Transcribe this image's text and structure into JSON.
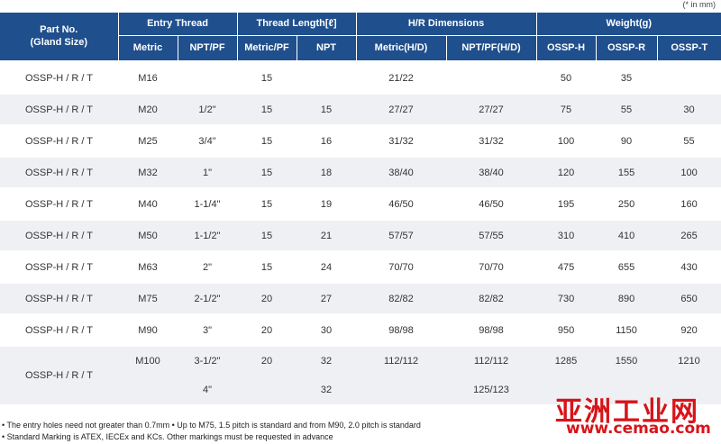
{
  "unit_note": "(* in mm)",
  "header": {
    "part_no": "Part No.",
    "gland_size": "(Gland Size)",
    "groups": {
      "entry_thread": "Entry Thread",
      "thread_length": "Thread Length[ℓ]",
      "hr_dimensions": "H/R Dimensions",
      "weight": "Weight(g)"
    },
    "sub": {
      "metric": "Metric",
      "npt_pf": "NPT/PF",
      "metric_pf": "Metric/PF",
      "npt": "NPT",
      "metric_hd": "Metric(H/D)",
      "npt_pf_hd": "NPT/PF(H/D)",
      "ossp_h": "OSSP-H",
      "ossp_r": "OSSP-R",
      "ossp_t": "OSSP-T"
    }
  },
  "rows": [
    {
      "part": "OSSP-H / R / T",
      "metric": "M16",
      "npt_pf": "",
      "tl_metric": "15",
      "tl_npt": "",
      "hr_metric": "21/22",
      "hr_npt": "",
      "w_h": "50",
      "w_r": "35",
      "w_t": ""
    },
    {
      "part": "OSSP-H / R / T",
      "metric": "M20",
      "npt_pf": "1/2\"",
      "tl_metric": "15",
      "tl_npt": "15",
      "hr_metric": "27/27",
      "hr_npt": "27/27",
      "w_h": "75",
      "w_r": "55",
      "w_t": "30"
    },
    {
      "part": "OSSP-H / R / T",
      "metric": "M25",
      "npt_pf": "3/4\"",
      "tl_metric": "15",
      "tl_npt": "16",
      "hr_metric": "31/32",
      "hr_npt": "31/32",
      "w_h": "100",
      "w_r": "90",
      "w_t": "55"
    },
    {
      "part": "OSSP-H / R / T",
      "metric": "M32",
      "npt_pf": "1\"",
      "tl_metric": "15",
      "tl_npt": "18",
      "hr_metric": "38/40",
      "hr_npt": "38/40",
      "w_h": "120",
      "w_r": "155",
      "w_t": "100"
    },
    {
      "part": "OSSP-H / R / T",
      "metric": "M40",
      "npt_pf": "1-1/4\"",
      "tl_metric": "15",
      "tl_npt": "19",
      "hr_metric": "46/50",
      "hr_npt": "46/50",
      "w_h": "195",
      "w_r": "250",
      "w_t": "160"
    },
    {
      "part": "OSSP-H / R / T",
      "metric": "M50",
      "npt_pf": "1-1/2\"",
      "tl_metric": "15",
      "tl_npt": "21",
      "hr_metric": "57/57",
      "hr_npt": "57/55",
      "w_h": "310",
      "w_r": "410",
      "w_t": "265"
    },
    {
      "part": "OSSP-H / R / T",
      "metric": "M63",
      "npt_pf": "2\"",
      "tl_metric": "15",
      "tl_npt": "24",
      "hr_metric": "70/70",
      "hr_npt": "70/70",
      "w_h": "475",
      "w_r": "655",
      "w_t": "430"
    },
    {
      "part": "OSSP-H / R / T",
      "metric": "M75",
      "npt_pf": "2-1/2\"",
      "tl_metric": "20",
      "tl_npt": "27",
      "hr_metric": "82/82",
      "hr_npt": "82/82",
      "w_h": "730",
      "w_r": "890",
      "w_t": "650"
    },
    {
      "part": "OSSP-H / R / T",
      "metric": "M90",
      "npt_pf": "3\"",
      "tl_metric": "20",
      "tl_npt": "30",
      "hr_metric": "98/98",
      "hr_npt": "98/98",
      "w_h": "950",
      "w_r": "1150",
      "w_t": "920"
    }
  ],
  "last_group": {
    "part": "OSSP-H / R / T",
    "row_a": {
      "metric": "M100",
      "npt_pf": "3-1/2\"",
      "tl_metric": "20",
      "tl_npt": "32",
      "hr_metric": "112/112",
      "hr_npt": "112/112",
      "w_h": "1285",
      "w_r": "1550",
      "w_t": "1210"
    },
    "row_b": {
      "metric": "",
      "npt_pf": "4\"",
      "tl_metric": "",
      "tl_npt": "32",
      "hr_metric": "",
      "hr_npt": "125/123",
      "w_h": "",
      "w_r": "",
      "w_t": ""
    }
  },
  "notes": {
    "line1": "• The entry holes need not greater than 0.7mm   • Up to M75, 1.5 pitch is standard and from M90, 2.0 pitch is standard",
    "line2": "• Standard Marking is ATEX, IECEx and KCs. Other markings must be requested in advance"
  },
  "watermark": {
    "cn": "亚洲工业网",
    "en": "www.cemao.com"
  }
}
